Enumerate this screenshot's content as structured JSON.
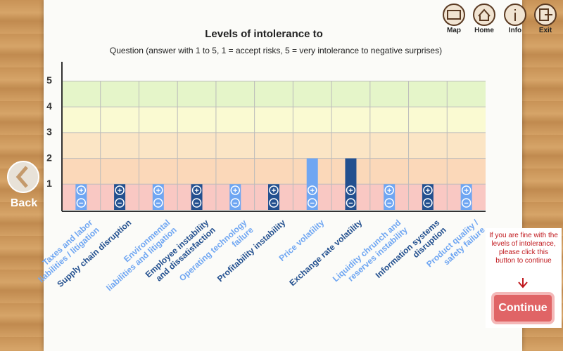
{
  "nav": {
    "map": "Map",
    "home": "Home",
    "info": "Info",
    "exit": "Exit",
    "back": "Back"
  },
  "chart_data": {
    "type": "bar",
    "title": "Levels of intolerance to",
    "subtitle": "Question (answer with 1 to 5, 1 = accept risks, 5 = very intolerance to negative surprises)",
    "categories": [
      "Taxes and labor\nliabilities / litigation",
      "Supply chain disruption",
      "Environmental\nliabilities and litigation",
      "Employee instability\nand dissatisfaction",
      "Operating technology\nfailure",
      "Profitability instability",
      "Price volatility",
      "Exchange rate volatility",
      "Liquidity chrunch and\nreserves instability",
      "Information systems\ndisruption",
      "Product quality /\nsafety failure"
    ],
    "values": [
      1,
      1,
      1,
      1,
      1,
      1,
      2,
      2,
      1,
      1,
      1
    ],
    "colors": [
      "#6fa6f2",
      "#23508f",
      "#6fa6f2",
      "#23508f",
      "#6fa6f2",
      "#23508f",
      "#6fa6f2",
      "#23508f",
      "#6fa6f2",
      "#23508f",
      "#6fa6f2"
    ],
    "ylim": [
      0,
      5.75
    ],
    "yticks": [
      1,
      2,
      3,
      4,
      5
    ],
    "band_colors": [
      "#f9c8c3",
      "#fbd8b9",
      "#fbe5c5",
      "#fafad2",
      "#e5f5c9"
    ],
    "grid": true
  },
  "continue": {
    "hint": "If you are fine with the levels of intolerance, please click this button to continue",
    "button": "Continue"
  }
}
